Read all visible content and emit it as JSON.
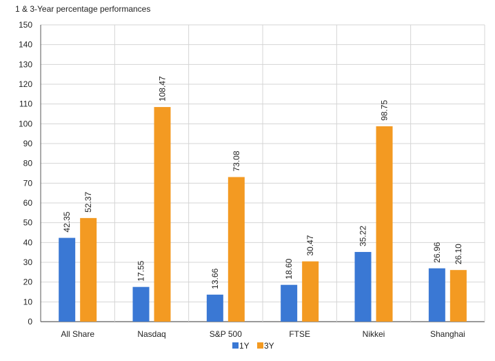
{
  "chart_data": {
    "type": "bar",
    "title": "1 & 3-Year percentage performances",
    "xlabel": "",
    "ylabel": "",
    "categories": [
      "All Share",
      "Nasdaq",
      "S&P 500",
      "FTSE",
      "Nikkei",
      "Shanghai"
    ],
    "series": [
      {
        "name": "1Y",
        "color": "#3a78d4",
        "values": [
          42.35,
          17.55,
          13.66,
          18.6,
          35.22,
          26.96
        ],
        "labels": [
          "42.35",
          "17.55",
          "13.66",
          "18.60",
          "35.22",
          "26.96"
        ]
      },
      {
        "name": "3Y",
        "color": "#f39a22",
        "values": [
          52.37,
          108.47,
          73.08,
          30.47,
          98.75,
          26.1
        ],
        "labels": [
          "52.37",
          "108.47",
          "73.08",
          "30.47",
          "98.75",
          "26.10"
        ]
      }
    ],
    "ylim": [
      0,
      150
    ],
    "yticks": [
      0,
      10,
      20,
      30,
      40,
      50,
      60,
      70,
      80,
      90,
      100,
      110,
      120,
      130,
      140,
      150
    ],
    "grid": true,
    "legend_position": "bottom"
  }
}
